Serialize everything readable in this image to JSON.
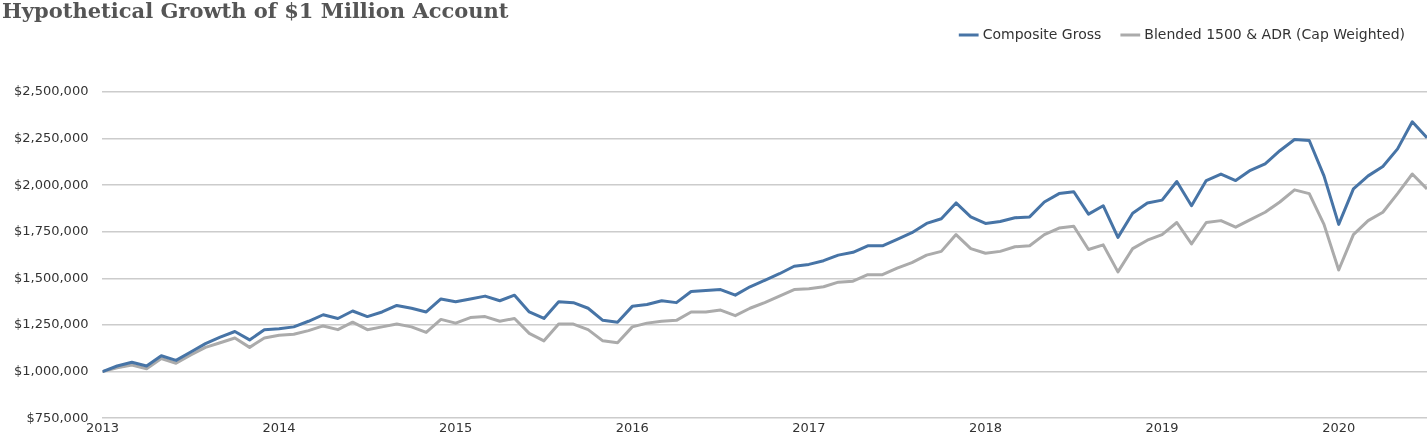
{
  "chart_data": {
    "type": "line",
    "title": "Hypothetical Growth of $1 Million Account",
    "x": [
      "2013-01",
      "2013-02",
      "2013-03",
      "2013-04",
      "2013-05",
      "2013-06",
      "2013-07",
      "2013-08",
      "2013-09",
      "2013-10",
      "2013-11",
      "2013-12",
      "2014-01",
      "2014-02",
      "2014-03",
      "2014-04",
      "2014-05",
      "2014-06",
      "2014-07",
      "2014-08",
      "2014-09",
      "2014-10",
      "2014-11",
      "2014-12",
      "2015-01",
      "2015-02",
      "2015-03",
      "2015-04",
      "2015-05",
      "2015-06",
      "2015-07",
      "2015-08",
      "2015-09",
      "2015-10",
      "2015-11",
      "2015-12",
      "2016-01",
      "2016-02",
      "2016-03",
      "2016-04",
      "2016-05",
      "2016-06",
      "2016-07",
      "2016-08",
      "2016-09",
      "2016-10",
      "2016-11",
      "2016-12",
      "2017-01",
      "2017-02",
      "2017-03",
      "2017-04",
      "2017-05",
      "2017-06",
      "2017-07",
      "2017-08",
      "2017-09",
      "2017-10",
      "2017-11",
      "2017-12",
      "2018-01",
      "2018-02",
      "2018-03",
      "2018-04",
      "2018-05",
      "2018-06",
      "2018-07",
      "2018-08",
      "2018-09",
      "2018-10",
      "2018-11",
      "2018-12",
      "2019-01",
      "2019-02",
      "2019-03",
      "2019-04",
      "2019-05",
      "2019-06",
      "2019-07",
      "2019-08",
      "2019-09",
      "2019-10",
      "2019-11",
      "2019-12",
      "2020-01",
      "2020-02",
      "2020-03",
      "2020-04",
      "2020-05",
      "2020-06",
      "2020-07"
    ],
    "series": [
      {
        "name": "Composite Gross",
        "color": "#4774a6",
        "values": [
          1000000,
          1030000,
          1050000,
          1030000,
          1085000,
          1060000,
          1105000,
          1150000,
          1185000,
          1215000,
          1170000,
          1225000,
          1230000,
          1240000,
          1270000,
          1305000,
          1285000,
          1325000,
          1295000,
          1320000,
          1355000,
          1340000,
          1320000,
          1390000,
          1375000,
          1390000,
          1405000,
          1380000,
          1410000,
          1320000,
          1285000,
          1375000,
          1370000,
          1340000,
          1275000,
          1265000,
          1350000,
          1360000,
          1380000,
          1370000,
          1430000,
          1435000,
          1440000,
          1410000,
          1455000,
          1490000,
          1525000,
          1565000,
          1575000,
          1595000,
          1625000,
          1640000,
          1675000,
          1675000,
          1710000,
          1745000,
          1795000,
          1820000,
          1905000,
          1830000,
          1795000,
          1805000,
          1825000,
          1830000,
          1910000,
          1955000,
          1965000,
          1845000,
          1890000,
          1720000,
          1850000,
          1905000,
          1920000,
          2020000,
          1890000,
          2025000,
          2060000,
          2025000,
          2080000,
          2115000,
          2185000,
          2245000,
          2240000,
          2050000,
          1790000,
          1980000,
          2050000,
          2100000,
          2195000,
          2340000,
          2255000
        ]
      },
      {
        "name": "Blended 1500 & ADR (Cap Weighted)",
        "color": "#ababab",
        "values": [
          1000000,
          1020000,
          1035000,
          1015000,
          1070000,
          1045000,
          1090000,
          1130000,
          1155000,
          1180000,
          1130000,
          1180000,
          1195000,
          1200000,
          1220000,
          1245000,
          1225000,
          1265000,
          1225000,
          1240000,
          1255000,
          1240000,
          1210000,
          1280000,
          1260000,
          1290000,
          1295000,
          1270000,
          1285000,
          1205000,
          1165000,
          1255000,
          1255000,
          1225000,
          1165000,
          1155000,
          1240000,
          1260000,
          1270000,
          1275000,
          1320000,
          1320000,
          1330000,
          1300000,
          1340000,
          1370000,
          1405000,
          1440000,
          1445000,
          1455000,
          1480000,
          1485000,
          1520000,
          1520000,
          1555000,
          1585000,
          1625000,
          1645000,
          1735000,
          1660000,
          1635000,
          1645000,
          1670000,
          1675000,
          1735000,
          1770000,
          1780000,
          1655000,
          1680000,
          1535000,
          1660000,
          1705000,
          1735000,
          1800000,
          1685000,
          1800000,
          1810000,
          1775000,
          1815000,
          1855000,
          1910000,
          1975000,
          1955000,
          1790000,
          1545000,
          1735000,
          1810000,
          1855000,
          1955000,
          2060000,
          1980000
        ]
      }
    ],
    "xlim": [
      "2013-01",
      "2020-07"
    ],
    "xticks": [
      "2013",
      "2014",
      "2015",
      "2016",
      "2017",
      "2018",
      "2019",
      "2020"
    ],
    "ylim": [
      750000,
      2500000
    ],
    "yticks": [
      {
        "value": 750000,
        "label": "$750,000"
      },
      {
        "value": 1000000,
        "label": "$1,000,000"
      },
      {
        "value": 1250000,
        "label": "$1,250,000"
      },
      {
        "value": 1500000,
        "label": "$1,500,000"
      },
      {
        "value": 1750000,
        "label": "$1,750,000"
      },
      {
        "value": 2000000,
        "label": "$2,000,000"
      },
      {
        "value": 2250000,
        "label": "$2,250,000"
      },
      {
        "value": 2500000,
        "label": "$2,500,000"
      }
    ],
    "grid": "y",
    "legend": "top right",
    "marker": "none",
    "line_style": "solid"
  }
}
